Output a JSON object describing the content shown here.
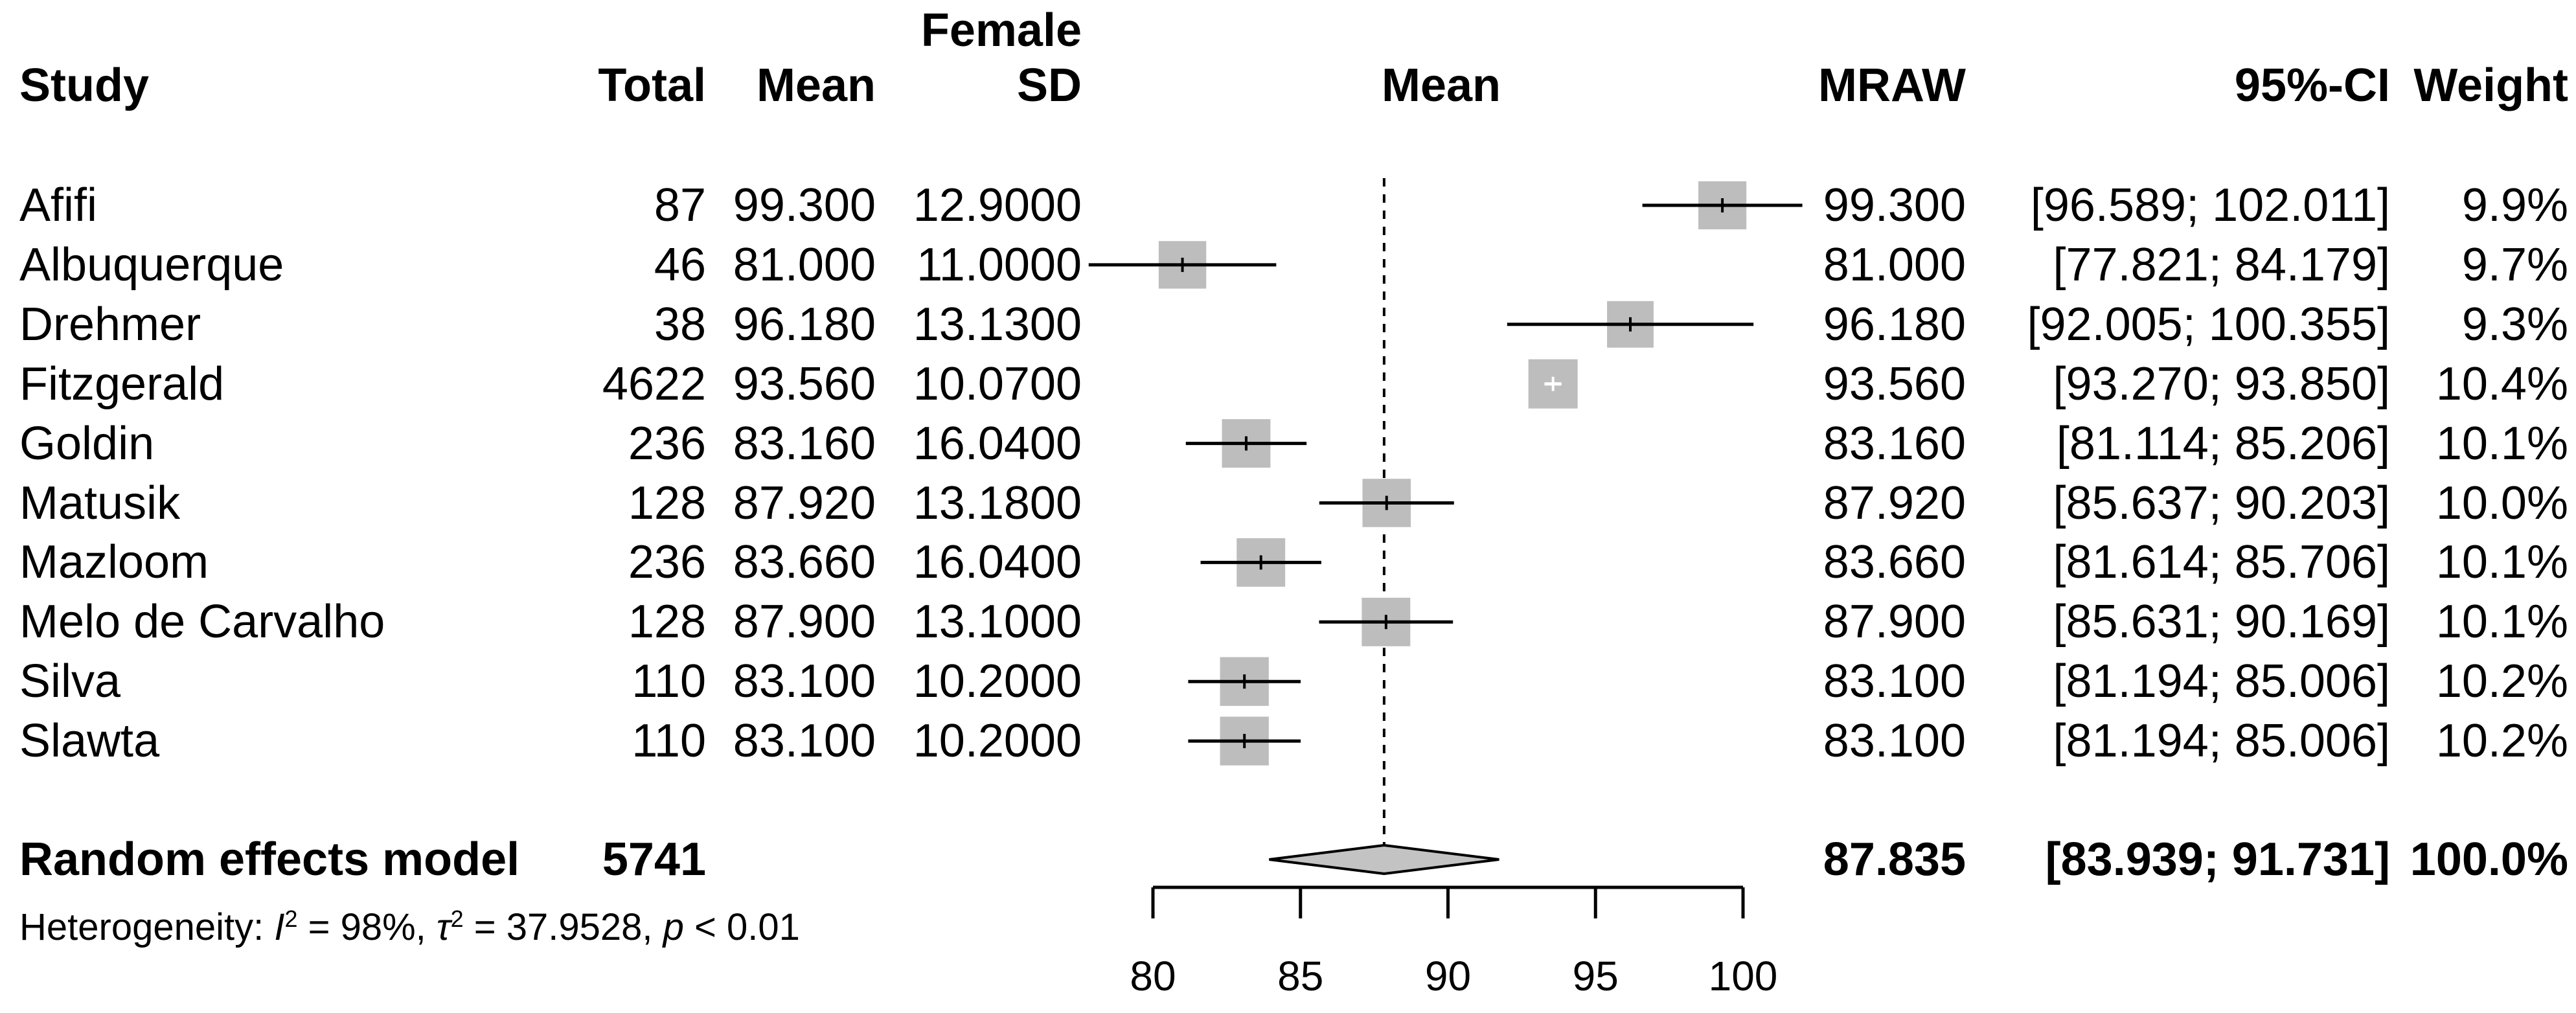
{
  "chart_data": {
    "type": "forest",
    "group_label": "Female",
    "columns": {
      "study": "Study",
      "total": "Total",
      "mean": "Mean",
      "sd_line1": "Female",
      "sd_line2": "SD",
      "plot_header": "Mean",
      "mraw": "MRAW",
      "ci": "95%-CI",
      "weight": "Weight"
    },
    "studies": [
      {
        "name": "Afifi",
        "total": "87",
        "mean": "99.300",
        "sd": "12.9000",
        "mraw": "99.300",
        "ci_text": "[96.589; 102.011]",
        "weight_text": "9.9%",
        "est": 99.3,
        "lo": 96.589,
        "hi": 102.011,
        "weight": 9.9
      },
      {
        "name": "Albuquerque",
        "total": "46",
        "mean": "81.000",
        "sd": "11.0000",
        "mraw": "81.000",
        "ci_text": "[77.821; 84.179]",
        "weight_text": "9.7%",
        "est": 81.0,
        "lo": 77.821,
        "hi": 84.179,
        "weight": 9.7
      },
      {
        "name": "Drehmer",
        "total": "38",
        "mean": "96.180",
        "sd": "13.1300",
        "mraw": "96.180",
        "ci_text": "[92.005; 100.355]",
        "weight_text": "9.3%",
        "est": 96.18,
        "lo": 92.005,
        "hi": 100.355,
        "weight": 9.3
      },
      {
        "name": "Fitzgerald",
        "total": "4622",
        "mean": "93.560",
        "sd": "10.0700",
        "mraw": "93.560",
        "ci_text": "[93.270; 93.850]",
        "weight_text": "10.4%",
        "est": 93.56,
        "lo": 93.27,
        "hi": 93.85,
        "weight": 10.4
      },
      {
        "name": "Goldin",
        "total": "236",
        "mean": "83.160",
        "sd": "16.0400",
        "mraw": "83.160",
        "ci_text": "[81.114; 85.206]",
        "weight_text": "10.1%",
        "est": 83.16,
        "lo": 81.114,
        "hi": 85.206,
        "weight": 10.1
      },
      {
        "name": "Matusik",
        "total": "128",
        "mean": "87.920",
        "sd": "13.1800",
        "mraw": "87.920",
        "ci_text": "[85.637; 90.203]",
        "weight_text": "10.0%",
        "est": 87.92,
        "lo": 85.637,
        "hi": 90.203,
        "weight": 10.0
      },
      {
        "name": "Mazloom",
        "total": "236",
        "mean": "83.660",
        "sd": "16.0400",
        "mraw": "83.660",
        "ci_text": "[81.614; 85.706]",
        "weight_text": "10.1%",
        "est": 83.66,
        "lo": 81.614,
        "hi": 85.706,
        "weight": 10.1
      },
      {
        "name": "Melo de Carvalho",
        "total": "128",
        "mean": "87.900",
        "sd": "13.1000",
        "mraw": "87.900",
        "ci_text": "[85.631; 90.169]",
        "weight_text": "10.1%",
        "est": 87.9,
        "lo": 85.631,
        "hi": 90.169,
        "weight": 10.1
      },
      {
        "name": "Silva",
        "total": "110",
        "mean": "83.100",
        "sd": "10.2000",
        "mraw": "83.100",
        "ci_text": "[81.194; 85.006]",
        "weight_text": "10.2%",
        "est": 83.1,
        "lo": 81.194,
        "hi": 85.006,
        "weight": 10.2
      },
      {
        "name": "Slawta",
        "total": "110",
        "mean": "83.100",
        "sd": "10.2000",
        "mraw": "83.100",
        "ci_text": "[81.194; 85.006]",
        "weight_text": "10.2%",
        "est": 83.1,
        "lo": 81.194,
        "hi": 85.006,
        "weight": 10.2
      }
    ],
    "summary": {
      "label": "Random effects model",
      "total": "5741",
      "mraw": "87.835",
      "ci_text": "[83.939; 91.731]",
      "weight_text": "100.0%",
      "est": 87.835,
      "lo": 83.939,
      "hi": 91.731
    },
    "heterogeneity_segments": [
      {
        "t": "Heterogeneity: "
      },
      {
        "t": "I",
        "italic": true
      },
      {
        "t": "2",
        "sup": true
      },
      {
        "t": " = 98%, "
      },
      {
        "t": "τ",
        "italic": true
      },
      {
        "t": "2",
        "sup": true
      },
      {
        "t": " = 37.9528, "
      },
      {
        "t": "p",
        "italic": true
      },
      {
        "t": " < 0.01"
      }
    ],
    "axis": {
      "min": 80,
      "max": 100,
      "ticks": [
        "80",
        "85",
        "90",
        "95",
        "100"
      ]
    },
    "colors": {
      "square": "#bdbdbd",
      "diamond": "#c3c3c3",
      "line": "#000000",
      "inner_ci": "#ffffff"
    }
  }
}
